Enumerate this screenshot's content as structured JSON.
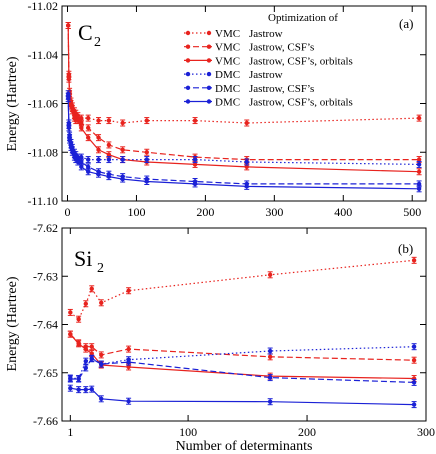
{
  "chart_data": [
    {
      "type": "line",
      "molecule": "C",
      "molecule_subscript": "2",
      "panel_tag": "(a)",
      "xlabel": "",
      "ylabel": "Energy (Hartree)",
      "xlim": [
        -8,
        520
      ],
      "ylim": [
        -11.1,
        -11.02
      ],
      "xticks": [
        0,
        100,
        200,
        300,
        400,
        500
      ],
      "xtick_labels": [
        "0",
        "100",
        "200",
        "300",
        "400",
        "500"
      ],
      "yticks": [
        -11.1,
        -11.08,
        -11.06,
        -11.04,
        -11.02
      ],
      "ytick_labels": [
        "-11.10",
        "-11.08",
        "-11.06",
        "-11.04",
        "-11.02"
      ],
      "legend": {
        "title": "Optimization of",
        "entries": [
          {
            "method": "VMC",
            "label": "Jastrow"
          },
          {
            "method": "VMC",
            "label": "Jastrow, CSF’s"
          },
          {
            "method": "VMC",
            "label": "Jastrow, CSF’s, orbitals"
          },
          {
            "method": "DMC",
            "label": "Jastrow"
          },
          {
            "method": "DMC",
            "label": "Jastrow, CSF’s"
          },
          {
            "method": "DMC",
            "label": "Jastrow, CSF’s, orbitals"
          }
        ]
      },
      "series": [
        {
          "name": "VMC Jastrow",
          "color": "#e8231e",
          "dash": "dotted",
          "x": [
            1,
            2,
            3,
            5,
            7,
            10,
            12,
            15,
            20,
            30,
            45,
            60,
            80,
            115,
            185,
            260,
            510
          ],
          "y": [
            -11.028,
            -11.048,
            -11.055,
            -11.059,
            -11.061,
            -11.063,
            -11.064,
            -11.065,
            -11.066,
            -11.066,
            -11.067,
            -11.067,
            -11.068,
            -11.067,
            -11.067,
            -11.068,
            -11.066
          ]
        },
        {
          "name": "VMC Jastrow, CSF’s",
          "color": "#e8231e",
          "dash": "dashed",
          "x": [
            1,
            2,
            3,
            5,
            7,
            10,
            12,
            15,
            20,
            30,
            45,
            60,
            80,
            115,
            185,
            260,
            510
          ],
          "y": [
            -11.028,
            -11.049,
            -11.056,
            -11.06,
            -11.062,
            -11.065,
            -11.066,
            -11.066,
            -11.068,
            -11.07,
            -11.074,
            -11.077,
            -11.079,
            -11.08,
            -11.082,
            -11.083,
            -11.083
          ]
        },
        {
          "name": "VMC Jastrow, CSF’s, orbitals",
          "color": "#e8231e",
          "dash": "solid",
          "x": [
            1,
            2,
            3,
            5,
            7,
            10,
            12,
            15,
            20,
            30,
            45,
            60,
            80,
            115,
            185,
            260,
            510
          ],
          "y": [
            -11.028,
            -11.05,
            -11.057,
            -11.061,
            -11.063,
            -11.066,
            -11.067,
            -11.067,
            -11.07,
            -11.074,
            -11.079,
            -11.081,
            -11.083,
            -11.084,
            -11.085,
            -11.086,
            -11.088
          ]
        },
        {
          "name": "DMC Jastrow",
          "color": "#1b21d6",
          "dash": "dotted",
          "x": [
            1,
            2,
            3,
            5,
            7,
            10,
            12,
            15,
            20,
            30,
            45,
            60,
            80,
            115,
            185,
            260,
            510
          ],
          "y": [
            -11.056,
            -11.068,
            -11.073,
            -11.076,
            -11.078,
            -11.08,
            -11.081,
            -11.082,
            -11.082,
            -11.083,
            -11.083,
            -11.083,
            -11.083,
            -11.083,
            -11.083,
            -11.084,
            -11.085
          ]
        },
        {
          "name": "DMC Jastrow, CSF’s",
          "color": "#1b21d6",
          "dash": "dashed",
          "x": [
            1,
            2,
            3,
            5,
            7,
            10,
            12,
            15,
            20,
            30,
            45,
            60,
            80,
            115,
            185,
            260,
            510
          ],
          "y": [
            -11.057,
            -11.069,
            -11.074,
            -11.077,
            -11.079,
            -11.081,
            -11.082,
            -11.083,
            -11.084,
            -11.086,
            -11.088,
            -11.089,
            -11.09,
            -11.091,
            -11.092,
            -11.093,
            -11.093
          ]
        },
        {
          "name": "DMC Jastrow, CSF’s, orbitals",
          "color": "#1b21d6",
          "dash": "solid",
          "x": [
            1,
            2,
            3,
            5,
            7,
            10,
            12,
            15,
            20,
            30,
            45,
            60,
            80,
            115,
            185,
            260,
            510
          ],
          "y": [
            -11.058,
            -11.07,
            -11.075,
            -11.078,
            -11.08,
            -11.082,
            -11.083,
            -11.084,
            -11.086,
            -11.088,
            -11.089,
            -11.09,
            -11.091,
            -11.092,
            -11.093,
            -11.094,
            -11.095
          ]
        }
      ]
    },
    {
      "type": "line",
      "molecule": "Si",
      "molecule_subscript": "2",
      "panel_tag": "(b)",
      "xlabel": "Number of determinants",
      "ylabel": "Energy (Hartree)",
      "xlim": [
        -6,
        300
      ],
      "ylim": [
        -7.66,
        -7.62
      ],
      "xticks": [
        1,
        100,
        200,
        300
      ],
      "xtick_labels": [
        "1",
        "100",
        "200",
        "300"
      ],
      "yticks": [
        -7.66,
        -7.65,
        -7.64,
        -7.63,
        -7.62
      ],
      "ytick_labels": [
        "-7.66",
        "-7.65",
        "-7.64",
        "-7.63",
        "-7.62"
      ],
      "series": [
        {
          "name": "VMC Jastrow",
          "color": "#e8231e",
          "dash": "dotted",
          "x": [
            1,
            8,
            14,
            19,
            27,
            50,
            169,
            290
          ],
          "y": [
            -7.6375,
            -7.6389,
            -7.6357,
            -7.6326,
            -7.6355,
            -7.633,
            -7.6297,
            -7.6267
          ]
        },
        {
          "name": "VMC Jastrow, CSF’s",
          "color": "#e8231e",
          "dash": "dashed",
          "x": [
            1,
            8,
            14,
            19,
            27,
            50,
            169,
            290
          ],
          "y": [
            -7.642,
            -7.6438,
            -7.6446,
            -7.6446,
            -7.6463,
            -7.6451,
            -7.6467,
            -7.6474
          ]
        },
        {
          "name": "VMC Jastrow, CSF’s, orbitals",
          "color": "#e8231e",
          "dash": "solid",
          "x": [
            1,
            8,
            14,
            19,
            27,
            50,
            169,
            290
          ],
          "y": [
            -7.642,
            -7.644,
            -7.6451,
            -7.646,
            -7.6484,
            -7.6488,
            -7.6507,
            -7.6512
          ]
        },
        {
          "name": "DMC Jastrow",
          "color": "#1b21d6",
          "dash": "dotted",
          "x": [
            1,
            8,
            14,
            19,
            27,
            50,
            169,
            290
          ],
          "y": [
            -7.6511,
            -7.6512,
            -7.6476,
            -7.647,
            -7.6482,
            -7.6473,
            -7.6455,
            -7.6446
          ]
        },
        {
          "name": "DMC Jastrow, CSF’s",
          "color": "#1b21d6",
          "dash": "dashed",
          "x": [
            1,
            8,
            14,
            19,
            27,
            50,
            169,
            290
          ],
          "y": [
            -7.6513,
            -7.6513,
            -7.649,
            -7.6471,
            -7.6482,
            -7.6478,
            -7.651,
            -7.652
          ]
        },
        {
          "name": "DMC Jastrow, CSF’s, orbitals",
          "color": "#1b21d6",
          "dash": "solid",
          "x": [
            1,
            8,
            14,
            19,
            27,
            50,
            169,
            290
          ],
          "y": [
            -7.6532,
            -7.6535,
            -7.6535,
            -7.6534,
            -7.6554,
            -7.6559,
            -7.656,
            -7.6566
          ]
        }
      ]
    }
  ]
}
